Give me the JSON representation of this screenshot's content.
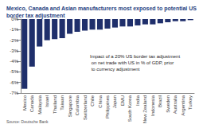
{
  "chart_data": {
    "type": "bar",
    "title": "Mexico, Canada and Asian manufacturers most exposed to potential US border tax adjustment",
    "annotation": "Impact of a 20% US border tax adjustment on net trade with US in % of GDP, prior to currency adjustment",
    "source": "Source: Deutsche Bank",
    "categories": [
      "Mexico",
      "Canada",
      "Malaysia",
      "Israel",
      "Thailand",
      "Taiwan",
      "Singapore",
      "Colombia",
      "Switzerland",
      "Chile",
      "China",
      "Philippines",
      "Japan",
      "EMU",
      "South Korea",
      "India",
      "New Zealand",
      "Indonesia",
      "Brazil",
      "Sweden",
      "Australia",
      "Argentina",
      "Turkey"
    ],
    "values": [
      -6.6,
      -4.5,
      -2.6,
      -2.0,
      -1.9,
      -1.8,
      -1.4,
      -1.2,
      -1.1,
      -1.0,
      -1.0,
      -0.9,
      -0.8,
      -0.7,
      -0.7,
      -0.6,
      -0.5,
      -0.5,
      -0.4,
      -0.3,
      -0.2,
      -0.2,
      -0.1
    ],
    "color": "#1f2f6b",
    "ylim": [
      -7,
      0
    ],
    "yticks": [
      {
        "value": -7,
        "label": "-7%"
      },
      {
        "value": -6,
        "label": "-6%"
      },
      {
        "value": -5,
        "label": "-5%"
      },
      {
        "value": -4,
        "label": "-4%"
      },
      {
        "value": -3,
        "label": "-3%"
      },
      {
        "value": -2,
        "label": "-2%"
      },
      {
        "value": -1,
        "label": "-1%"
      },
      {
        "value": 0,
        "label": "0%"
      }
    ],
    "grid": false
  }
}
